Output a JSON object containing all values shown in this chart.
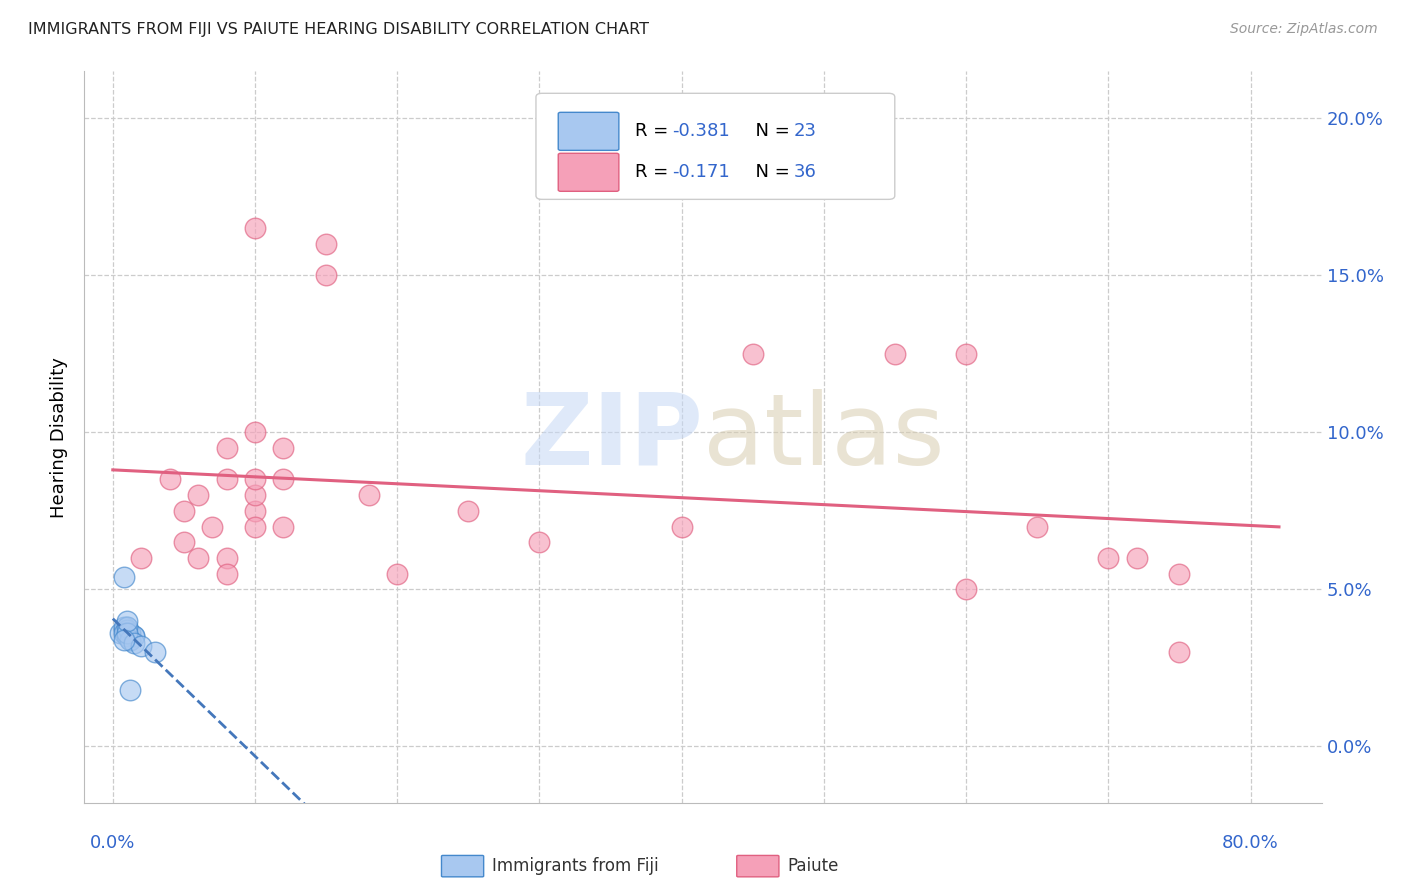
{
  "title": "IMMIGRANTS FROM FIJI VS PAIUTE HEARING DISABILITY CORRELATION CHART",
  "source": "Source: ZipAtlas.com",
  "ylabel": "Hearing Disability",
  "legend_label1": "Immigrants from Fiji",
  "legend_label2": "Paiute",
  "r1": -0.381,
  "n1": 23,
  "r2": -0.171,
  "n2": 36,
  "color_fiji": "#a8c8f0",
  "color_fiji_edge": "#4488cc",
  "color_fiji_line": "#4477bb",
  "color_paiute": "#f5a0b8",
  "color_paiute_edge": "#e06080",
  "color_paiute_line": "#e06080",
  "fiji_x": [
    0.0005,
    0.0008,
    0.001,
    0.0012,
    0.0015,
    0.001,
    0.0008,
    0.0012,
    0.001,
    0.0008,
    0.001,
    0.0012,
    0.0015,
    0.001,
    0.0008,
    0.0012,
    0.001,
    0.0015,
    0.002,
    0.001,
    0.0008,
    0.003,
    0.0012
  ],
  "fiji_y": [
    0.036,
    0.037,
    0.038,
    0.035,
    0.035,
    0.036,
    0.038,
    0.034,
    0.037,
    0.036,
    0.035,
    0.036,
    0.035,
    0.038,
    0.054,
    0.034,
    0.036,
    0.033,
    0.032,
    0.04,
    0.034,
    0.03,
    0.018
  ],
  "paiute_x": [
    0.002,
    0.004,
    0.005,
    0.005,
    0.006,
    0.007,
    0.008,
    0.008,
    0.008,
    0.01,
    0.01,
    0.01,
    0.01,
    0.01,
    0.012,
    0.012,
    0.015,
    0.015,
    0.018,
    0.02,
    0.025,
    0.03,
    0.04,
    0.045,
    0.055,
    0.06,
    0.065,
    0.07,
    0.072,
    0.075,
    0.01,
    0.012,
    0.008,
    0.006,
    0.06,
    0.075
  ],
  "paiute_y": [
    0.06,
    0.085,
    0.065,
    0.075,
    0.08,
    0.07,
    0.085,
    0.06,
    0.055,
    0.075,
    0.08,
    0.07,
    0.165,
    0.085,
    0.085,
    0.07,
    0.16,
    0.15,
    0.08,
    0.055,
    0.075,
    0.065,
    0.07,
    0.125,
    0.125,
    0.125,
    0.07,
    0.06,
    0.06,
    0.055,
    0.1,
    0.095,
    0.095,
    0.06,
    0.05,
    0.03
  ],
  "xlim": [
    -0.002,
    0.085
  ],
  "ylim": [
    -0.018,
    0.215
  ],
  "yticks": [
    0.0,
    0.05,
    0.1,
    0.15,
    0.2
  ],
  "xtick_labels_show": [
    0.0,
    0.08
  ],
  "background_color": "#ffffff",
  "grid_color": "#cccccc",
  "axis_label_color": "#3366cc",
  "title_color": "#222222",
  "source_color": "#999999"
}
